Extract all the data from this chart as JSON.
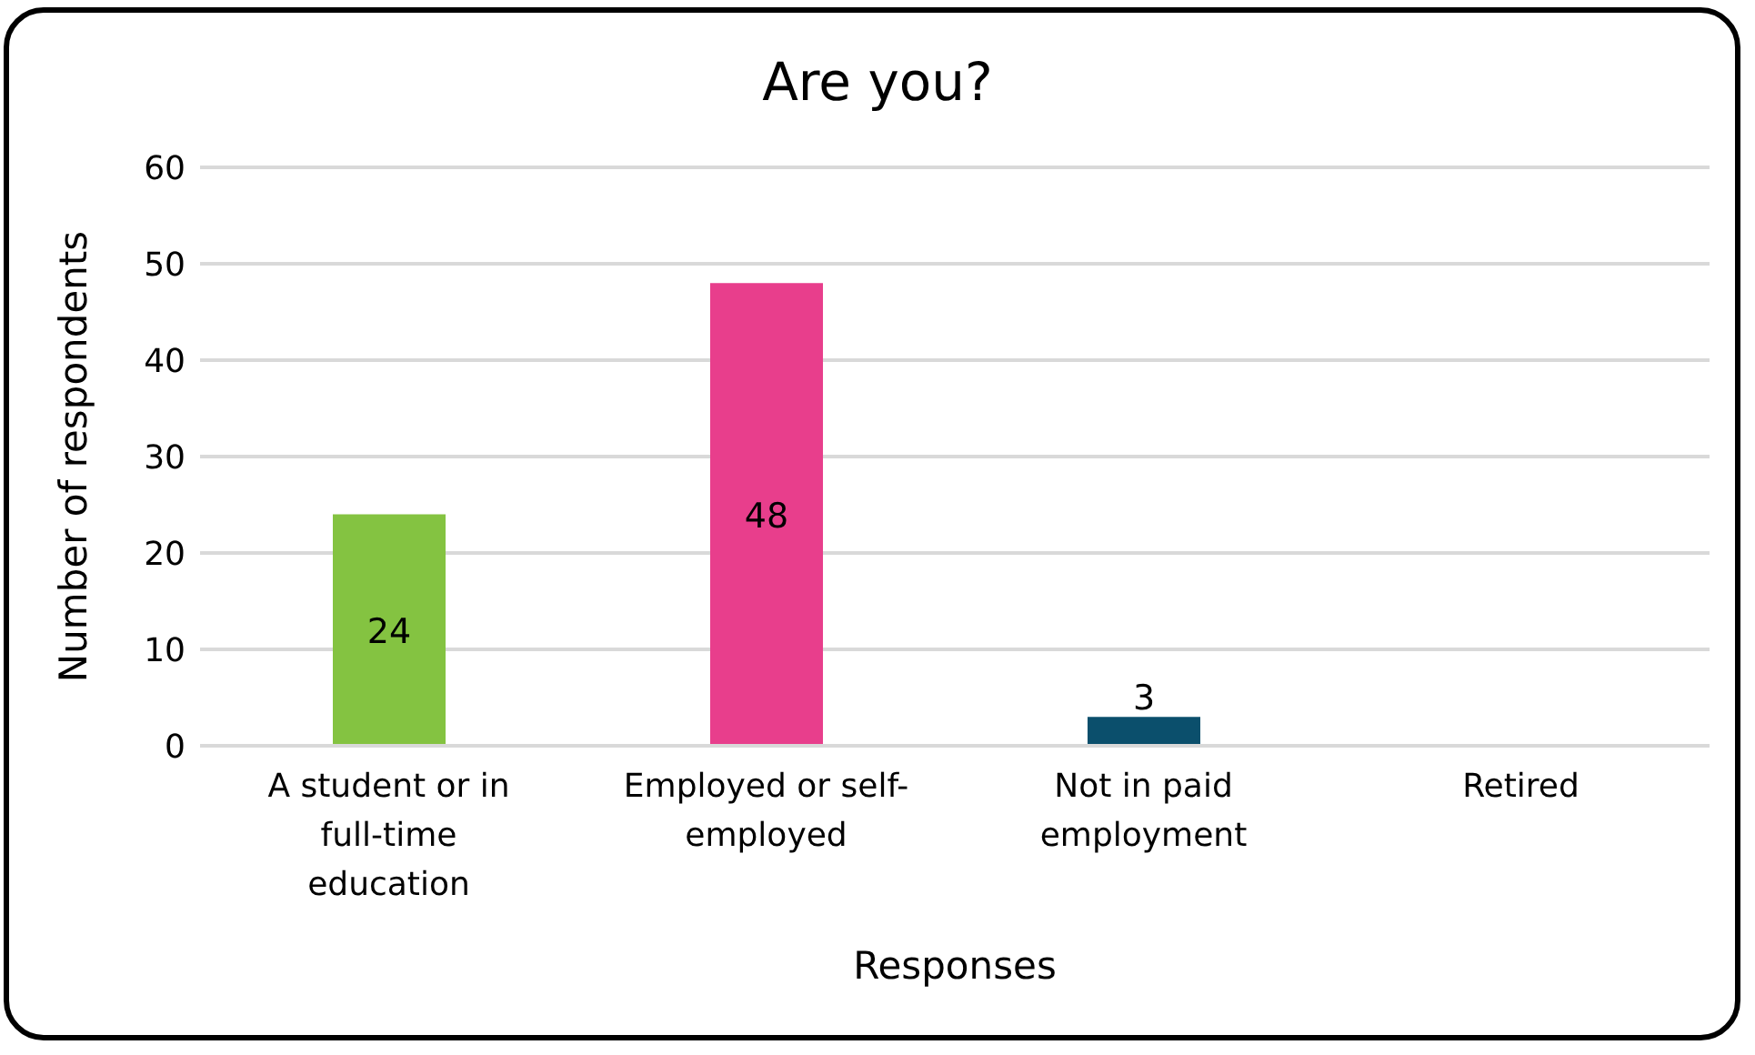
{
  "chart_data": {
    "type": "bar",
    "title": "Are you?",
    "xlabel": "Responses",
    "ylabel": "Number of respondents",
    "categories": [
      "A student or in full-time education",
      "Employed or self-employed",
      "Not in paid employment",
      "Retired"
    ],
    "values": [
      24,
      48,
      3,
      0
    ],
    "colors": [
      "#84c341",
      "#e83e8c",
      "#0b4f6c",
      "#0b4f6c"
    ],
    "value_labels": [
      "24",
      "48",
      "3",
      null
    ],
    "ylim": [
      0,
      60
    ],
    "yticks": [
      0,
      10,
      20,
      30,
      40,
      50,
      60
    ],
    "grid": "y"
  }
}
